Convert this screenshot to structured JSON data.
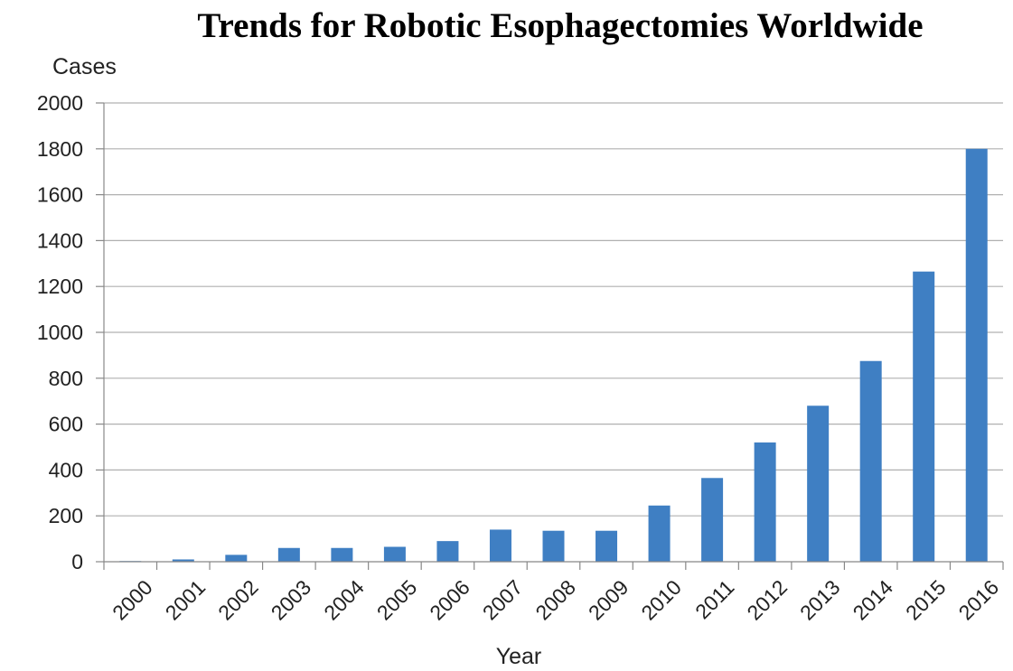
{
  "chart_data": {
    "type": "bar",
    "title": "Trends for Robotic Esophagectomies Worldwide",
    "xlabel": "Year",
    "ylabel": "Cases",
    "categories": [
      "2000",
      "2001",
      "2002",
      "2003",
      "2004",
      "2005",
      "2006",
      "2007",
      "2008",
      "2009",
      "2010",
      "2011",
      "2012",
      "2013",
      "2014",
      "2015",
      "2016"
    ],
    "values": [
      3,
      10,
      30,
      60,
      60,
      65,
      90,
      140,
      135,
      135,
      245,
      365,
      520,
      680,
      875,
      1265,
      1800
    ],
    "ylim": [
      0,
      2000
    ],
    "yticks": [
      "0",
      "200",
      "400",
      "600",
      "800",
      "1000",
      "1200",
      "1400",
      "1600",
      "1800",
      "2000"
    ],
    "grid": true,
    "legend": "none",
    "bar_color": "#3f7fc3",
    "grid_color": "#b0b0b0",
    "axis_color": "#888888"
  }
}
